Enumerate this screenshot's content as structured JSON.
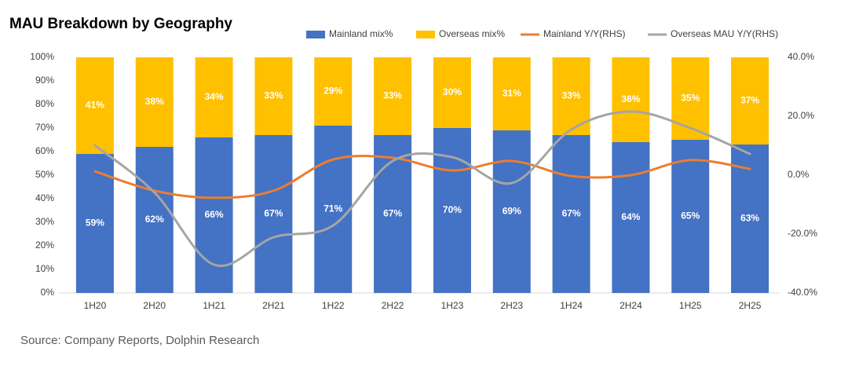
{
  "chart_data": {
    "type": "bar",
    "stacked": true,
    "title": "MAU Breakdown by Geography",
    "source": "Source: Company Reports, Dolphin Research",
    "categories": [
      "1H20",
      "2H20",
      "1H21",
      "2H21",
      "1H22",
      "2H22",
      "1H23",
      "2H23",
      "1H24",
      "2H24",
      "1H25",
      "2H25"
    ],
    "series": [
      {
        "name": "Mainland mix%",
        "type": "bar",
        "color": "#4472c4",
        "values": [
          59,
          62,
          66,
          67,
          71,
          67,
          70,
          69,
          67,
          64,
          65,
          63
        ],
        "value_labels": [
          "59%",
          "62%",
          "66%",
          "67%",
          "71%",
          "67%",
          "70%",
          "69%",
          "67%",
          "64%",
          "65%",
          "63%"
        ]
      },
      {
        "name": "Overseas mix%",
        "type": "bar",
        "color": "#ffc000",
        "values": [
          41,
          38,
          34,
          33,
          29,
          33,
          30,
          31,
          33,
          36,
          35,
          37
        ],
        "value_labels": [
          "41%",
          "38%",
          "34%",
          "33%",
          "29%",
          "33%",
          "30%",
          "31%",
          "33%",
          "36%",
          "35%",
          "37%"
        ]
      },
      {
        "name": "Mainland Y/Y(RHS)",
        "type": "line",
        "axis": "y2",
        "color": "#ed7d31",
        "values": [
          1.3,
          -5.3,
          -7.7,
          -5.3,
          5.3,
          5.9,
          1.6,
          4.8,
          -0.3,
          0,
          5.1,
          2.1
        ]
      },
      {
        "name": "Overseas MAU Y/Y(RHS)",
        "type": "line",
        "axis": "y2",
        "color": "#a5a5a5",
        "values": [
          10.1,
          -5.9,
          -30.4,
          -21.1,
          -17.1,
          4.8,
          6.1,
          -2.7,
          15.5,
          21.6,
          16.0,
          7.2
        ]
      }
    ],
    "ylim": [
      0,
      100
    ],
    "yticks": [
      {
        "value": 0,
        "label": "0%"
      },
      {
        "value": 10,
        "label": "10%"
      },
      {
        "value": 20,
        "label": "20%"
      },
      {
        "value": 30,
        "label": "30%"
      },
      {
        "value": 40,
        "label": "40%"
      },
      {
        "value": 50,
        "label": "50%"
      },
      {
        "value": 60,
        "label": "60%"
      },
      {
        "value": 70,
        "label": "70%"
      },
      {
        "value": 80,
        "label": "80%"
      },
      {
        "value": 90,
        "label": "90%"
      },
      {
        "value": 100,
        "label": "100%"
      }
    ],
    "y2lim": [
      -40,
      40
    ],
    "y2ticks": [
      {
        "value": -40,
        "label": "-40.0%"
      },
      {
        "value": -20,
        "label": "-20.0%"
      },
      {
        "value": 0,
        "label": "0.0%"
      },
      {
        "value": 20,
        "label": "20.0%"
      },
      {
        "value": 40,
        "label": "40.0%"
      }
    ],
    "legend": "top"
  }
}
